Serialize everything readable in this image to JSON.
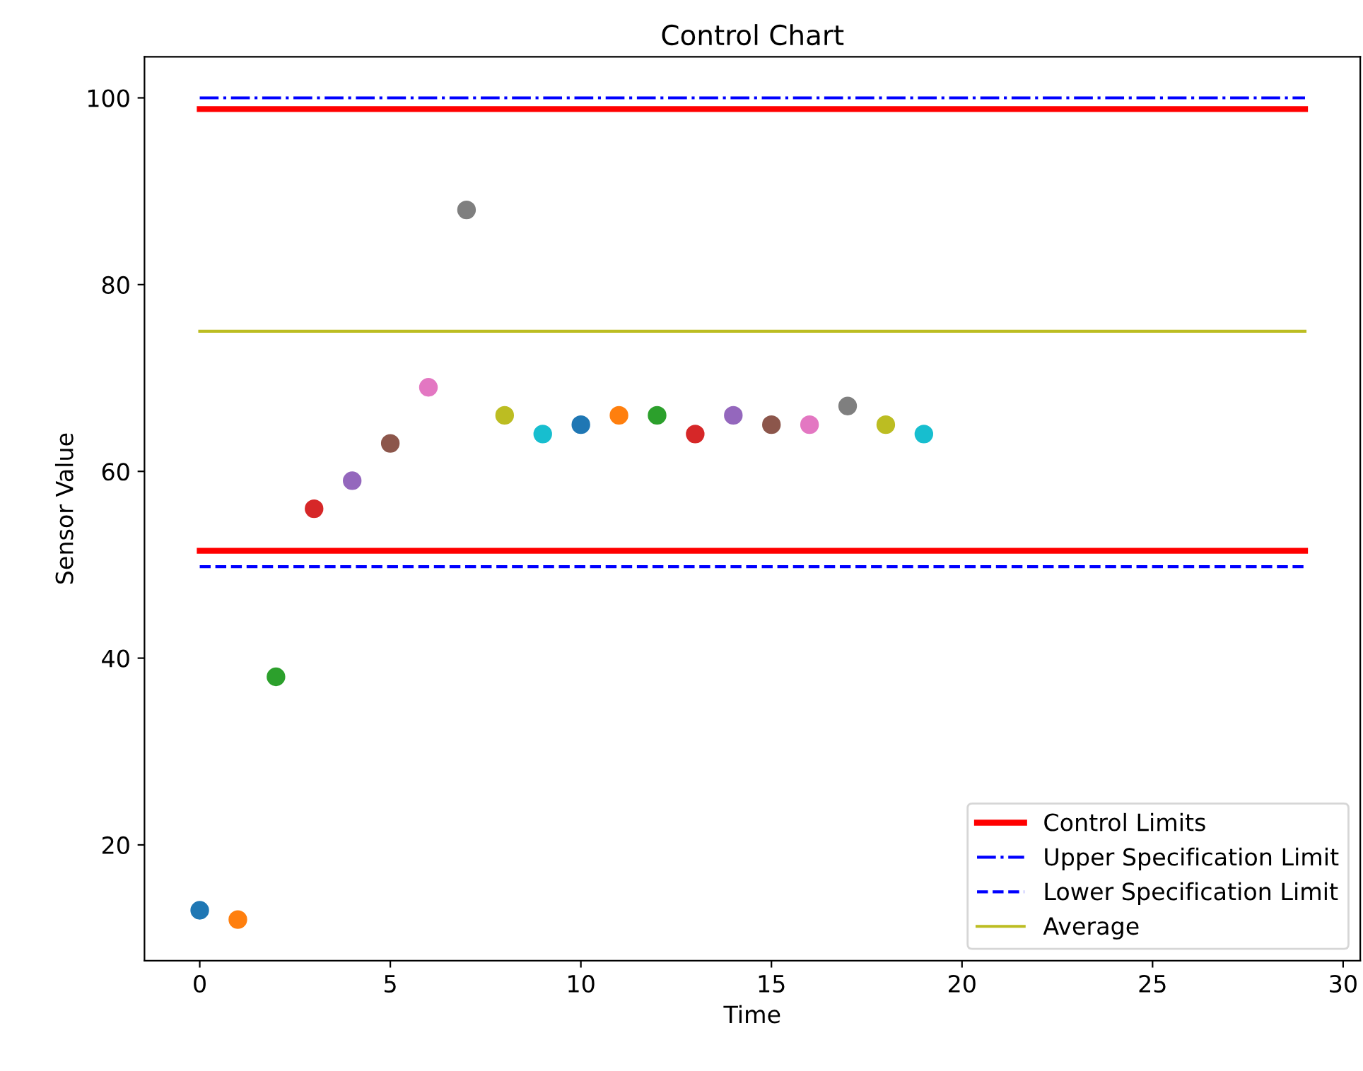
{
  "chart_data": {
    "type": "scatter",
    "title": "Control Chart",
    "xlabel": "Time",
    "ylabel": "Sensor Value",
    "xlim": [
      -1.45,
      30.45
    ],
    "ylim": [
      7.6,
      104.4
    ],
    "xticks": [
      0,
      5,
      10,
      15,
      20,
      25,
      30
    ],
    "yticks": [
      20,
      40,
      60,
      80,
      100
    ],
    "grid": false,
    "legend": "bottom right",
    "series": [
      {
        "type": "line",
        "name": "Control Limits",
        "color": "#ff0000",
        "line_style": "solid",
        "x": [
          0,
          29
        ],
        "values": [
          98.8,
          98.8
        ]
      },
      {
        "type": "line",
        "name": "Upper Specification Limit",
        "color": "#0000ff",
        "line_style": "dashdot",
        "x": [
          0,
          29
        ],
        "values": [
          100,
          100
        ]
      },
      {
        "type": "line",
        "name": "Lower Specification Limit",
        "color": "#0000ff",
        "line_style": "dashed",
        "x": [
          0,
          29
        ],
        "values": [
          49.8,
          49.8
        ]
      },
      {
        "type": "line",
        "name": "Average",
        "color": "#bcbd22",
        "line_style": "solid",
        "x": [
          0,
          29
        ],
        "values": [
          75,
          75
        ]
      },
      {
        "type": "line",
        "color": "#ff0000",
        "line_style": "solid",
        "x": [
          0,
          29
        ],
        "values": [
          51.5,
          51.5
        ]
      },
      {
        "marker": "circle",
        "x": [
          0,
          1,
          2,
          3,
          4,
          5,
          6,
          7,
          8,
          9,
          10,
          11,
          12,
          13,
          14,
          15,
          16,
          17,
          18,
          19
        ],
        "values": [
          13,
          12,
          38,
          56,
          59,
          63,
          69,
          88,
          66,
          64,
          65,
          66,
          66,
          64,
          66,
          65,
          65,
          67,
          65,
          64
        ],
        "colors": [
          "#1f77b4",
          "#ff7f0e",
          "#2ca02c",
          "#d62728",
          "#9467bd",
          "#8c564b",
          "#e377c2",
          "#7f7f7f",
          "#bcbd22",
          "#17becf",
          "#1f77b4",
          "#ff7f0e",
          "#2ca02c",
          "#d62728",
          "#9467bd",
          "#8c564b",
          "#e377c2",
          "#7f7f7f",
          "#bcbd22",
          "#17becf"
        ]
      }
    ]
  }
}
